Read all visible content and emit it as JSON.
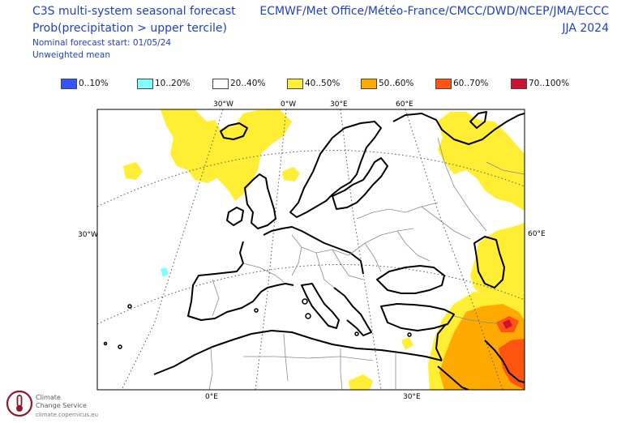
{
  "header": {
    "title": "C3S multi-system seasonal forecast",
    "subtitle": "Prob(precipitation > upper tercile)",
    "nominal_start": "Nominal forecast start: 01/05/24",
    "weighting": "Unweighted mean",
    "centres": "ECMWF/Met Office/Météo-France/CMCC/DWD/NCEP/JMA/ECCC",
    "season": "JJA 2024"
  },
  "legend": [
    {
      "label": "0..10%",
      "color": "#3355ff"
    },
    {
      "label": "10..20%",
      "color": "#7fffff"
    },
    {
      "label": "20..40%",
      "color": "#ffffff"
    },
    {
      "label": "40..50%",
      "color": "#ffee33"
    },
    {
      "label": "50..60%",
      "color": "#ffaa00"
    },
    {
      "label": "60..70%",
      "color": "#ff5511"
    },
    {
      "label": "70..100%",
      "color": "#cc1133"
    }
  ],
  "graticule_labels": {
    "top": [
      "30°W",
      "0°W",
      "30°E",
      "60°E"
    ],
    "left": "30°W",
    "right": "60°E",
    "bottom": [
      "0°E",
      "30°E"
    ]
  },
  "logo": {
    "name_line1": "Climate",
    "name_line2": "Change Service",
    "url": "climate.copernicus.eu"
  }
}
